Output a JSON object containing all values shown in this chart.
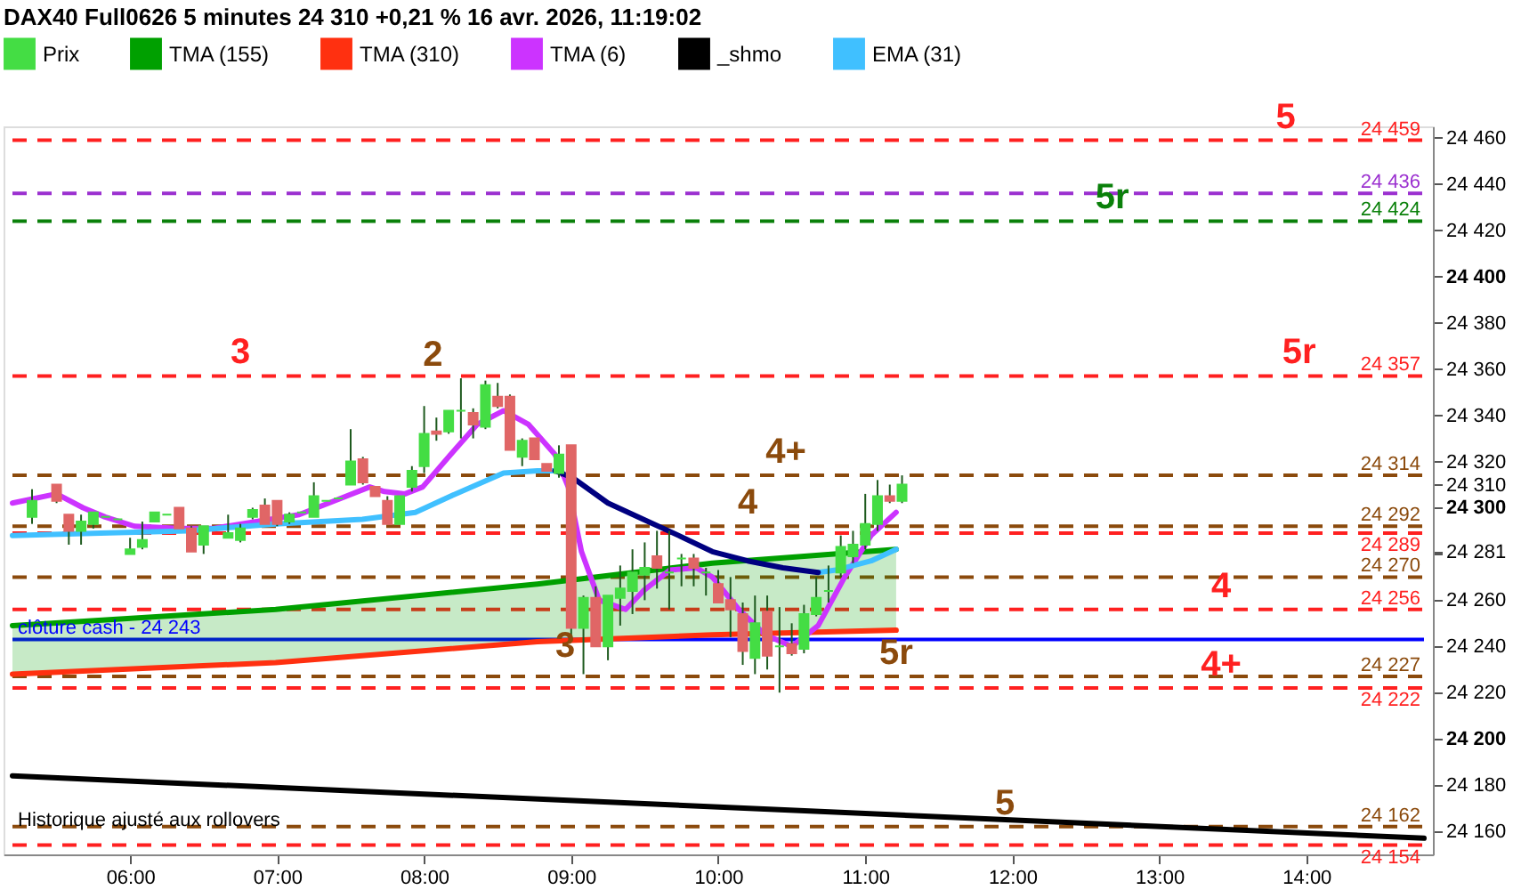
{
  "chart_data": {
    "type": "candlestick",
    "title": "DAX40 Full0626 5 minutes 24 310 +0,21 % 16 avr. 2026, 11:19:02",
    "xlim": [
      5.2,
      14.8
    ],
    "ylim": [
      24150,
      24465
    ],
    "xticks": [
      {
        "value": 6,
        "label": "06:00"
      },
      {
        "value": 7,
        "label": "07:00"
      },
      {
        "value": 8,
        "label": "08:00"
      },
      {
        "value": 9,
        "label": "09:00"
      },
      {
        "value": 10,
        "label": "10:00"
      },
      {
        "value": 11,
        "label": "11:00"
      },
      {
        "value": 12,
        "label": "12:00"
      },
      {
        "value": 13,
        "label": "13:00"
      },
      {
        "value": 14,
        "label": "14:00"
      }
    ],
    "yticks": [
      {
        "value": 24160,
        "label": "24 160"
      },
      {
        "value": 24180,
        "label": "24 180"
      },
      {
        "value": 24200,
        "label": "24 200"
      },
      {
        "value": 24220,
        "label": "24 220"
      },
      {
        "value": 24240,
        "label": "24 240"
      },
      {
        "value": 24260,
        "label": "24 260"
      },
      {
        "value": 24280,
        "label": null
      },
      {
        "value": 24281,
        "label": "24 281"
      },
      {
        "value": 24300,
        "label": "24 300"
      },
      {
        "value": 24310,
        "label": "24 310"
      },
      {
        "value": 24320,
        "label": "24 320"
      },
      {
        "value": 24340,
        "label": "24 340"
      },
      {
        "value": 24360,
        "label": "24 360"
      },
      {
        "value": 24380,
        "label": "24 380"
      },
      {
        "value": 24400,
        "label": "24 400"
      },
      {
        "value": 24420,
        "label": "24 420"
      },
      {
        "value": 24440,
        "label": "24 440"
      },
      {
        "value": 24460,
        "label": "24 460"
      }
    ],
    "legend": "top",
    "grid": false,
    "series": [
      {
        "name": "Prix",
        "colors": [
          "#44dd44",
          "#e06666",
          "#e06666",
          "#44dd44",
          "#44dd44",
          "#44dd44",
          "#44dd44",
          "#44dd44",
          "#44dd44",
          "#44dd44",
          "#44dd44",
          "#e06666",
          "#e06666",
          "#44dd44",
          "#44dd44",
          "#44dd44",
          "#44dd44",
          "#e06666",
          "#e06666",
          "#44dd44",
          "#44dd44",
          "#44dd44",
          "#44dd44",
          "#44dd44",
          "#44dd44",
          "#e06666",
          "#e06666",
          "#e06666",
          "#44dd44",
          "#44dd44",
          "#44dd44",
          "#e06666",
          "#44dd44",
          "#44dd44",
          "#e06666",
          "#44dd44",
          "#e06666",
          "#e06666",
          "#44dd44",
          "#e06666",
          "#e06666",
          "#44dd44",
          "#e06666",
          "#44dd44",
          "#e06666",
          "#44dd44",
          "#44dd44",
          "#44dd44",
          "#44dd44",
          "#e06666",
          "#44dd44",
          "#44dd44",
          "#e06666",
          "#44dd44",
          "#e06666",
          "#e06666",
          "#e06666",
          "#44dd44",
          "#e06666",
          "#44dd44",
          "#e06666",
          "#44dd44",
          "#44dd44",
          "#44dd44",
          "#44dd44",
          "#44dd44",
          "#44dd44",
          "#44dd44",
          "#e06666",
          "#44dd44"
        ],
        "x": [
          5.3333,
          5.5,
          5.5833,
          5.6667,
          5.75,
          5.8333,
          5.9167,
          6.0,
          6.0833,
          6.1667,
          6.25,
          6.3333,
          6.4167,
          6.5,
          6.6667,
          6.75,
          6.8333,
          6.9167,
          7.0,
          7.0833,
          7.1667,
          7.25,
          7.3333,
          7.4167,
          7.5,
          7.5833,
          7.6667,
          7.75,
          7.8333,
          7.9167,
          8.0,
          8.0833,
          8.1667,
          8.25,
          8.3333,
          8.4167,
          8.5,
          8.5833,
          8.6667,
          8.75,
          8.8333,
          8.9167,
          9.0,
          9.0833,
          9.1667,
          9.25,
          9.3333,
          9.4167,
          9.5,
          9.5833,
          9.6667,
          9.75,
          9.8333,
          9.9167,
          10.0,
          10.0833,
          10.1667,
          10.25,
          10.3333,
          10.4167,
          10.5,
          10.5833,
          10.6667,
          10.75,
          10.8333,
          10.9167,
          11.0,
          11.0833,
          11.1667,
          11.25
        ],
        "ohlc": [
          [
            24296,
            24308,
            24293,
            24303
          ],
          [
            24310,
            24310,
            24302,
            24303
          ],
          [
            24297,
            24297,
            24284,
            24290
          ],
          [
            24290,
            24297,
            24284,
            24294
          ],
          [
            24293,
            24298,
            24291,
            24298
          ],
          [
            24296,
            24296,
            24296,
            24296
          ],
          [
            24295,
            24295,
            24295,
            24295
          ],
          [
            24280,
            24287,
            24280,
            24282
          ],
          [
            24283,
            24294,
            24282,
            24286
          ],
          [
            24294,
            24298,
            24294,
            24298
          ],
          [
            24297,
            24297,
            24297,
            24297
          ],
          [
            24300,
            24300,
            24291,
            24291
          ],
          [
            24291,
            24292,
            24281,
            24281
          ],
          [
            24284,
            24292,
            24280,
            24292
          ],
          [
            24287,
            24297,
            24287,
            24289
          ],
          [
            24286,
            24293,
            24285,
            24291
          ],
          [
            24296,
            24300,
            24295,
            24299
          ],
          [
            24301,
            24304,
            24293,
            24293
          ],
          [
            24303,
            24303,
            24292,
            24293
          ],
          [
            24294,
            24298,
            24293,
            24297
          ],
          [
            24298,
            24298,
            24298,
            24298
          ],
          [
            24296,
            24311,
            24296,
            24305
          ],
          [
            24303,
            24303,
            24303,
            24303
          ],
          [
            24304,
            24304,
            24304,
            24304
          ],
          [
            24310,
            24334,
            24310,
            24320
          ],
          [
            24321,
            24322,
            24310,
            24311
          ],
          [
            24309,
            24309,
            24305,
            24305
          ],
          [
            24303,
            24305,
            24293,
            24293
          ],
          [
            24293,
            24305,
            24293,
            24305
          ],
          [
            24309,
            24318,
            24307,
            24316
          ],
          [
            24318,
            24344,
            24315,
            24332
          ],
          [
            24333,
            24339,
            24329,
            24332
          ],
          [
            24333,
            24342,
            24332,
            24342
          ],
          [
            24342,
            24356,
            24330,
            24342
          ],
          [
            24341,
            24343,
            24330,
            24336
          ],
          [
            24335,
            24355,
            24334,
            24353
          ],
          [
            24348,
            24354,
            24343,
            24344
          ],
          [
            24348,
            24349,
            24325,
            24325
          ],
          [
            24322,
            24330,
            24318,
            24329
          ],
          [
            24330,
            24330,
            24321,
            24321
          ],
          [
            24319,
            24319,
            24316,
            24316
          ],
          [
            24315,
            24327,
            24313,
            24323
          ],
          [
            24327,
            24327,
            24243,
            24248
          ],
          [
            24248,
            24262,
            24228,
            24261
          ],
          [
            24261,
            24266,
            24240,
            24240
          ],
          [
            24240,
            24262,
            24234,
            24262
          ],
          [
            24261,
            24275,
            24249,
            24265
          ],
          [
            24264,
            24282,
            24254,
            24272
          ],
          [
            24271,
            24285,
            24260,
            24274
          ],
          [
            24279,
            24290,
            24265,
            24274
          ],
          [
            24272,
            24290,
            24256,
            24272
          ],
          [
            24278,
            24280,
            24266,
            24278
          ],
          [
            24278,
            24280,
            24266,
            24274
          ],
          [
            24272,
            24274,
            24262,
            24272
          ],
          [
            24267,
            24273,
            24259,
            24259
          ],
          [
            24260,
            24270,
            24244,
            24256
          ],
          [
            24254,
            24259,
            24232,
            24238
          ],
          [
            24235,
            24262,
            24228,
            24250
          ],
          [
            24255,
            24262,
            24230,
            24236
          ],
          [
            24240,
            24257,
            24220,
            24240
          ],
          [
            24241,
            24250,
            24236,
            24237
          ],
          [
            24239,
            24258,
            24237,
            24254
          ],
          [
            24254,
            24270,
            24253,
            24261
          ],
          [
            24264,
            24275,
            24259,
            24264
          ],
          [
            24272,
            24288,
            24270,
            24283
          ],
          [
            24279,
            24290,
            24276,
            24284
          ],
          [
            24284,
            24306,
            24282,
            24293
          ],
          [
            24293,
            24312,
            24290,
            24305
          ],
          [
            24305,
            24310,
            24302,
            24303
          ],
          [
            24303,
            24314,
            24302,
            24310
          ]
        ]
      },
      {
        "name": "TMA (155)",
        "type": "line",
        "color": "#00a000",
        "x": [
          5.2,
          6.99,
          8.77,
          9.96,
          11.21
        ],
        "values": [
          24249,
          24256,
          24267,
          24276,
          24282
        ],
        "lower": [
          24228,
          24233,
          24242,
          24245,
          24247
        ],
        "upper": [
          24249,
          24256,
          24267,
          24276,
          24282
        ]
      },
      {
        "name": "TMA (310)",
        "type": "line",
        "color": "#ff3010",
        "x": [
          5.2,
          6.99,
          8.77,
          9.96,
          11.21
        ],
        "values": [
          24228,
          24233,
          24242,
          24245,
          24247
        ]
      },
      {
        "name": "TMA (6)",
        "type": "line",
        "color": "#cc33ff",
        "x": [
          5.2,
          5.5,
          5.68,
          5.83,
          6.03,
          6.33,
          6.56,
          6.86,
          7.15,
          7.39,
          7.63,
          7.73,
          7.87,
          7.99,
          8.18,
          8.36,
          8.54,
          8.71,
          8.89,
          8.98,
          9.07,
          9.19,
          9.37,
          9.49,
          9.67,
          9.85,
          9.96,
          10.14,
          10.32,
          10.5,
          10.68,
          10.86,
          11.04,
          11.21
        ],
        "values": [
          24302,
          24306,
          24300,
          24296,
          24292,
          24291,
          24291,
          24294,
          24297,
          24303,
          24309,
          24307,
          24306,
          24309,
          24323,
          24336,
          24342,
          24336,
          24323,
          24309,
          24281,
          24260,
          24256,
          24264,
          24273,
          24274,
          24270,
          24256,
          24245,
          24240,
          24249,
          24270,
          24288,
          24298
        ]
      },
      {
        "name": "_shmo",
        "type": "line",
        "color": "#000000",
        "x": [
          5.2,
          14.8
        ],
        "values": [
          24184,
          24157
        ]
      },
      {
        "name": "EMA (31)",
        "type": "line",
        "color": "#40c0ff",
        "x": [
          5.2,
          5.8,
          6.39,
          6.99,
          7.58,
          7.94,
          8.18,
          8.54,
          8.77,
          8.89,
          9.25,
          9.73,
          10.2,
          10.68,
          10.8,
          11.04,
          11.21
        ],
        "values": [
          24288,
          24289,
          24290,
          24293,
          24295,
          24298,
          24305,
          24315,
          24316,
          24316,
          null,
          null,
          null,
          24272,
          24273,
          24277,
          24282
        ]
      },
      {
        "type": "line",
        "color": "#000080",
        "x": [
          8.89,
          9.01,
          9.25,
          9.49,
          9.73,
          9.96,
          10.2,
          10.44,
          10.68
        ],
        "values": [
          24316,
          24313,
          24302,
          24295,
          24288,
          24281,
          24277,
          24274,
          24272
        ]
      }
    ],
    "ref_lines": [
      {
        "axis": "y",
        "value": 24459,
        "label": "24 459",
        "color": "#ff2020",
        "line_style": "dashed"
      },
      {
        "axis": "y",
        "value": 24436,
        "label": "24 436",
        "color": "#9b30d0",
        "line_style": "dashed"
      },
      {
        "axis": "y",
        "value": 24424,
        "label": "24 424",
        "color": "#0a800a",
        "line_style": "dashed"
      },
      {
        "axis": "y",
        "value": 24357,
        "label": "24 357",
        "color": "#ff2020",
        "line_style": "dashed"
      },
      {
        "axis": "y",
        "value": 24314,
        "label": "24 314",
        "color": "#8b4a0c",
        "line_style": "dashed"
      },
      {
        "axis": "y",
        "value": 24292,
        "label": "24 292",
        "color": "#8b4a0c",
        "line_style": "dashed"
      },
      {
        "axis": "y",
        "value": 24289,
        "label": "24 289",
        "color": "#ff2020",
        "line_style": "dashed"
      },
      {
        "axis": "y",
        "value": 24270,
        "label": "24 270",
        "color": "#8b4a0c",
        "line_style": "dashed"
      },
      {
        "axis": "y",
        "value": 24256,
        "label": "24 256",
        "color": "#ff2020",
        "line_style": "dashed"
      },
      {
        "axis": "y",
        "value": 24243,
        "label": "clôture cash -  24 243",
        "color": "#0000ff",
        "line_style": "solid"
      },
      {
        "axis": "y",
        "value": 24227,
        "label": "24 227",
        "color": "#8b4a0c",
        "line_style": "dashed"
      },
      {
        "axis": "y",
        "value": 24222,
        "label": "24 222",
        "color": "#ff2020",
        "line_style": "dashed"
      },
      {
        "axis": "y",
        "value": 24162,
        "label": "24 162",
        "color": "#8b4a0c",
        "line_style": "dashed"
      },
      {
        "axis": "y",
        "value": 24154,
        "label": "24 154",
        "color": "#ff2020",
        "line_style": "dashed"
      }
    ],
    "annotations": [
      {
        "text": "5",
        "x": 13.86,
        "y": 24459
      },
      {
        "text": "5r",
        "x": 12.68,
        "y": 24424
      },
      {
        "text": "3",
        "x": 6.75,
        "y": 24357
      },
      {
        "text": "5r",
        "x": 13.95,
        "y": 24357
      },
      {
        "text": "2",
        "x": 8.06,
        "y": 24356
      },
      {
        "text": "4+",
        "x": 10.46,
        "y": 24314
      },
      {
        "text": "4",
        "x": 10.2,
        "y": 24292
      },
      {
        "text": "4",
        "x": 13.42,
        "y": 24256
      },
      {
        "text": "5r",
        "x": 11.21,
        "y": 24227
      },
      {
        "text": "4+",
        "x": 13.42,
        "y": 24222
      },
      {
        "text": "3",
        "x": 8.96,
        "y": 24230
      },
      {
        "text": "5",
        "x": 11.95,
        "y": 24162
      },
      "Historique ajusté aux rollovers"
    ]
  }
}
